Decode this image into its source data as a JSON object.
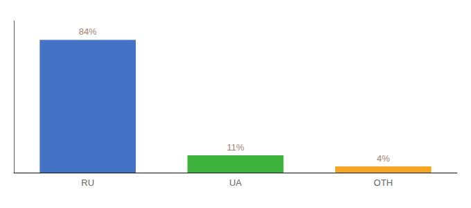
{
  "chart_data": {
    "type": "bar",
    "categories": [
      "RU",
      "UA",
      "OTH"
    ],
    "values": [
      84,
      11,
      4
    ],
    "value_labels": [
      "84%",
      "11%",
      "4%"
    ],
    "colors": [
      "#4472c4",
      "#3db33d",
      "#f5a623"
    ],
    "ylim": [
      0,
      96
    ],
    "grid": false,
    "data_labels": true,
    "tick_labels": "x"
  }
}
